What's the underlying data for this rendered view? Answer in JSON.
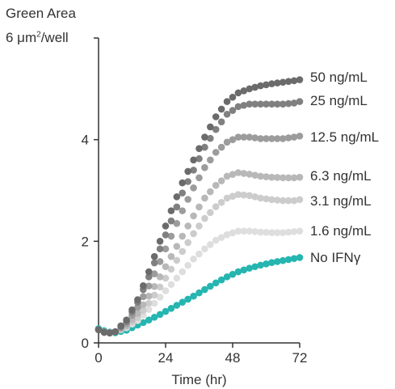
{
  "chart_data": {
    "type": "scatter",
    "ylabel_line1": "Green Area",
    "ylabel_line2_prefix": "6 μm",
    "ylabel_line2_sup": "2",
    "ylabel_line2_suffix": "/well",
    "xlabel": "Time (hr)",
    "xlim": [
      0,
      72
    ],
    "ylim": [
      0,
      6
    ],
    "xticks": [
      0,
      24,
      48,
      72
    ],
    "xtick_labels": [
      "0",
      "24",
      "48",
      "72"
    ],
    "yticks": [
      0,
      2,
      4
    ],
    "ytick_labels": [
      "0",
      "2",
      "4"
    ],
    "grid": false,
    "legend_placement": "right-end-labels",
    "series": [
      {
        "name": "50 ng/mL",
        "color": "#6b6b6b",
        "keypoints": [
          [
            0,
            0.26
          ],
          [
            3,
            0.18
          ],
          [
            6,
            0.22
          ],
          [
            10,
            0.45
          ],
          [
            14,
            0.85
          ],
          [
            18,
            1.4
          ],
          [
            22,
            2.0
          ],
          [
            26,
            2.6
          ],
          [
            30,
            3.15
          ],
          [
            34,
            3.6
          ],
          [
            38,
            4.05
          ],
          [
            42,
            4.45
          ],
          [
            46,
            4.75
          ],
          [
            50,
            4.92
          ],
          [
            54,
            5.0
          ],
          [
            58,
            5.06
          ],
          [
            62,
            5.1
          ],
          [
            66,
            5.13
          ],
          [
            70,
            5.16
          ],
          [
            72,
            5.18
          ]
        ]
      },
      {
        "name": "25 ng/mL",
        "color": "#808080",
        "keypoints": [
          [
            0,
            0.26
          ],
          [
            3,
            0.19
          ],
          [
            6,
            0.22
          ],
          [
            10,
            0.42
          ],
          [
            14,
            0.8
          ],
          [
            18,
            1.3
          ],
          [
            22,
            1.85
          ],
          [
            26,
            2.4
          ],
          [
            30,
            2.95
          ],
          [
            34,
            3.4
          ],
          [
            38,
            3.85
          ],
          [
            42,
            4.2
          ],
          [
            46,
            4.5
          ],
          [
            50,
            4.65
          ],
          [
            54,
            4.7
          ],
          [
            58,
            4.7
          ],
          [
            62,
            4.7
          ],
          [
            66,
            4.7
          ],
          [
            70,
            4.72
          ],
          [
            72,
            4.75
          ]
        ]
      },
      {
        "name": "12.5 ng/mL",
        "color": "#9c9c9c",
        "keypoints": [
          [
            0,
            0.26
          ],
          [
            3,
            0.2
          ],
          [
            6,
            0.22
          ],
          [
            10,
            0.38
          ],
          [
            14,
            0.7
          ],
          [
            18,
            1.12
          ],
          [
            22,
            1.6
          ],
          [
            26,
            2.1
          ],
          [
            30,
            2.6
          ],
          [
            34,
            3.05
          ],
          [
            38,
            3.45
          ],
          [
            42,
            3.75
          ],
          [
            46,
            3.95
          ],
          [
            50,
            4.05
          ],
          [
            54,
            4.05
          ],
          [
            58,
            4.02
          ],
          [
            62,
            4.02
          ],
          [
            66,
            4.02
          ],
          [
            70,
            4.05
          ],
          [
            72,
            4.07
          ]
        ]
      },
      {
        "name": "6.3 ng/mL",
        "color": "#b8b8b8",
        "keypoints": [
          [
            0,
            0.26
          ],
          [
            3,
            0.2
          ],
          [
            6,
            0.22
          ],
          [
            10,
            0.34
          ],
          [
            14,
            0.58
          ],
          [
            18,
            0.92
          ],
          [
            22,
            1.3
          ],
          [
            26,
            1.7
          ],
          [
            30,
            2.1
          ],
          [
            34,
            2.5
          ],
          [
            38,
            2.85
          ],
          [
            42,
            3.1
          ],
          [
            46,
            3.28
          ],
          [
            50,
            3.35
          ],
          [
            54,
            3.32
          ],
          [
            58,
            3.28
          ],
          [
            62,
            3.26
          ],
          [
            66,
            3.25
          ],
          [
            70,
            3.25
          ],
          [
            72,
            3.26
          ]
        ]
      },
      {
        "name": "3.1 ng/mL",
        "color": "#cccccc",
        "keypoints": [
          [
            0,
            0.26
          ],
          [
            3,
            0.2
          ],
          [
            6,
            0.22
          ],
          [
            10,
            0.32
          ],
          [
            14,
            0.5
          ],
          [
            18,
            0.78
          ],
          [
            22,
            1.1
          ],
          [
            26,
            1.45
          ],
          [
            30,
            1.8
          ],
          [
            34,
            2.15
          ],
          [
            38,
            2.45
          ],
          [
            42,
            2.68
          ],
          [
            46,
            2.85
          ],
          [
            50,
            2.92
          ],
          [
            54,
            2.9
          ],
          [
            58,
            2.85
          ],
          [
            62,
            2.82
          ],
          [
            66,
            2.8
          ],
          [
            70,
            2.8
          ],
          [
            72,
            2.82
          ]
        ]
      },
      {
        "name": "1.6 ng/mL",
        "color": "#dedede",
        "keypoints": [
          [
            0,
            0.26
          ],
          [
            3,
            0.2
          ],
          [
            6,
            0.22
          ],
          [
            10,
            0.3
          ],
          [
            14,
            0.44
          ],
          [
            18,
            0.66
          ],
          [
            22,
            0.9
          ],
          [
            26,
            1.15
          ],
          [
            30,
            1.4
          ],
          [
            34,
            1.65
          ],
          [
            38,
            1.85
          ],
          [
            42,
            2.02
          ],
          [
            46,
            2.13
          ],
          [
            50,
            2.2
          ],
          [
            54,
            2.2
          ],
          [
            58,
            2.18
          ],
          [
            62,
            2.17
          ],
          [
            66,
            2.17
          ],
          [
            70,
            2.19
          ],
          [
            72,
            2.2
          ]
        ]
      },
      {
        "name": "No IFNγ",
        "color": "#26b5b0",
        "keypoints": [
          [
            0,
            0.28
          ],
          [
            3,
            0.22
          ],
          [
            6,
            0.2
          ],
          [
            10,
            0.25
          ],
          [
            14,
            0.35
          ],
          [
            18,
            0.45
          ],
          [
            22,
            0.56
          ],
          [
            26,
            0.68
          ],
          [
            30,
            0.8
          ],
          [
            34,
            0.92
          ],
          [
            38,
            1.05
          ],
          [
            42,
            1.18
          ],
          [
            46,
            1.3
          ],
          [
            50,
            1.4
          ],
          [
            54,
            1.47
          ],
          [
            58,
            1.53
          ],
          [
            62,
            1.58
          ],
          [
            66,
            1.62
          ],
          [
            70,
            1.66
          ],
          [
            72,
            1.68
          ]
        ]
      }
    ]
  }
}
